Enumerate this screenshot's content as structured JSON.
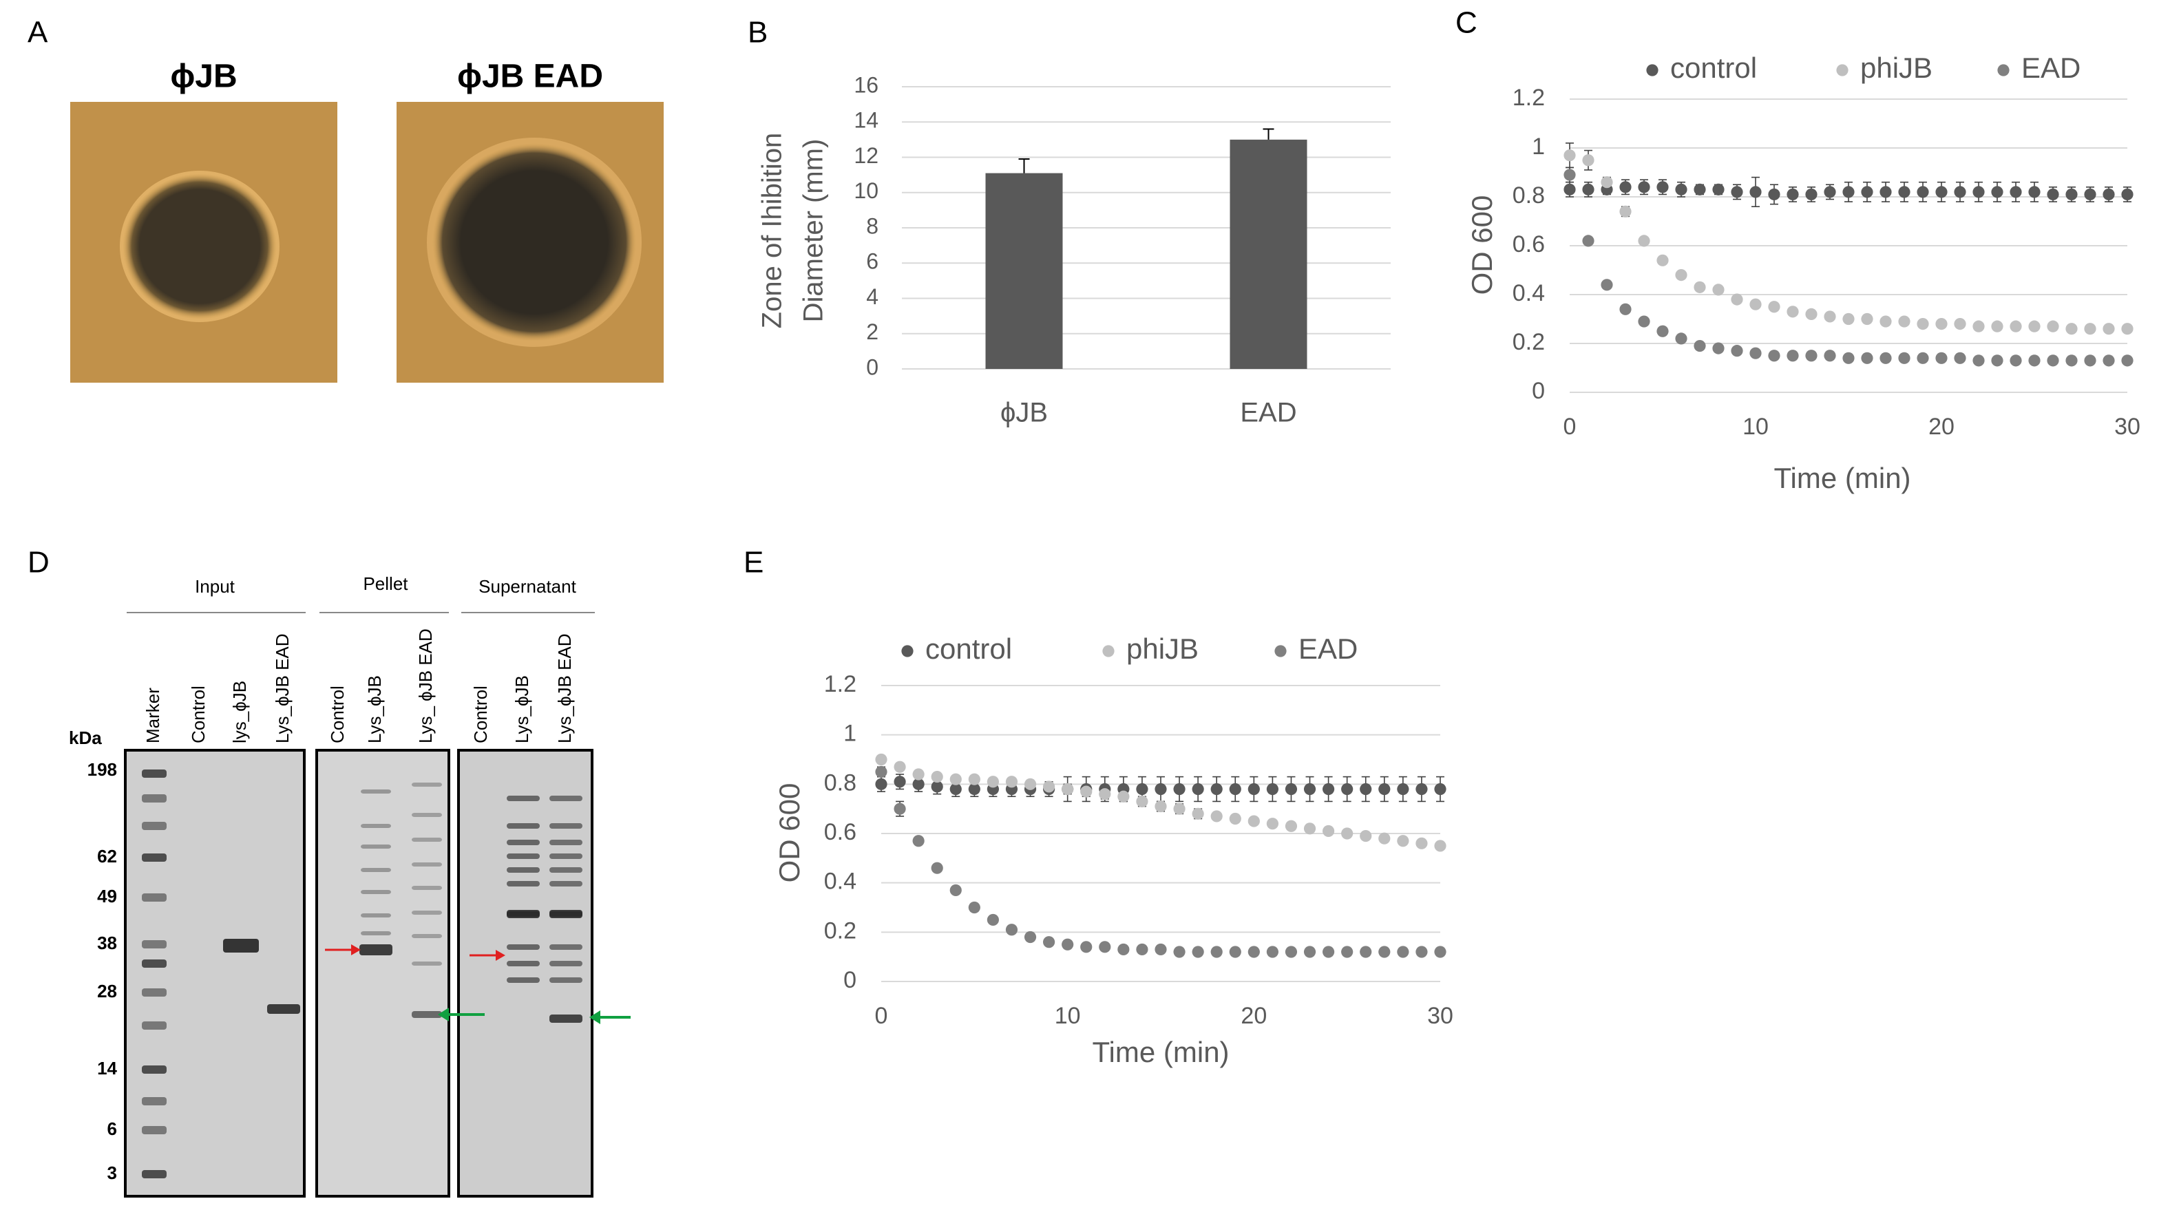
{
  "panel_labels": [
    "A",
    "B",
    "C",
    "D",
    "E"
  ],
  "panel_a": {
    "titles": [
      "ϕJB",
      "ϕJB EAD"
    ]
  },
  "panel_d": {
    "groups": [
      {
        "name": "Input",
        "lanes": [
          "Marker",
          "Control",
          "lys_ϕJB",
          "Lys_ϕJB EAD"
        ]
      },
      {
        "name": "Pellet",
        "lanes": [
          "Control",
          "Lys_ϕJB",
          "Lys_ ϕJB EAD"
        ]
      },
      {
        "name": "Supernatant",
        "lanes": [
          "Control",
          "Lys_ϕJB",
          "Lys_ϕJB EAD"
        ]
      }
    ],
    "unit": "kDa",
    "markers": [
      198,
      62,
      49,
      38,
      28,
      14,
      6,
      3
    ]
  },
  "chart_data": [
    {
      "type": "bar",
      "categories": [
        "ϕJB",
        "EAD"
      ],
      "values": [
        11.1,
        13.0
      ],
      "errors": [
        0.8,
        0.6
      ],
      "color": "#595959",
      "y_label": [
        "Zone of Ihibition",
        "Diameter  (mm)"
      ],
      "ylim": [
        0,
        16
      ],
      "yticks": [
        0,
        2,
        4,
        6,
        8,
        10,
        12,
        14,
        16
      ],
      "grid": true
    },
    {
      "type": "scatter",
      "x": [
        0,
        1,
        2,
        3,
        4,
        5,
        6,
        7,
        8,
        9,
        10,
        11,
        12,
        13,
        14,
        15,
        16,
        17,
        18,
        19,
        20,
        21,
        22,
        23,
        24,
        25,
        26,
        27,
        28,
        29,
        30
      ],
      "x_label": "Time (min)",
      "y_label": "OD 600",
      "xlim": [
        0,
        30
      ],
      "xticks": [
        0,
        10,
        20,
        30
      ],
      "ylim": [
        0,
        1.2
      ],
      "yticks": [
        0,
        0.2,
        0.4,
        0.6,
        0.8,
        1,
        1.2
      ],
      "grid": true,
      "legend": "top",
      "series": [
        {
          "name": "control",
          "color": "#595959",
          "values": [
            0.83,
            0.83,
            0.83,
            0.84,
            0.84,
            0.84,
            0.83,
            0.83,
            0.83,
            0.82,
            0.82,
            0.81,
            0.81,
            0.81,
            0.82,
            0.82,
            0.82,
            0.82,
            0.82,
            0.82,
            0.82,
            0.82,
            0.82,
            0.82,
            0.82,
            0.82,
            0.81,
            0.81,
            0.81,
            0.81,
            0.81
          ],
          "errors": [
            0.03,
            0.03,
            0.02,
            0.03,
            0.03,
            0.03,
            0.03,
            0.02,
            0.02,
            0.03,
            0.06,
            0.04,
            0.03,
            0.03,
            0.03,
            0.04,
            0.04,
            0.04,
            0.04,
            0.04,
            0.04,
            0.04,
            0.04,
            0.04,
            0.04,
            0.04,
            0.03,
            0.03,
            0.03,
            0.03,
            0.03
          ]
        },
        {
          "name": "phiJB",
          "color": "#bfbfbf",
          "values": [
            0.97,
            0.95,
            0.86,
            0.74,
            0.62,
            0.54,
            0.48,
            0.43,
            0.42,
            0.38,
            0.36,
            0.35,
            0.33,
            0.32,
            0.31,
            0.3,
            0.3,
            0.29,
            0.29,
            0.28,
            0.28,
            0.28,
            0.27,
            0.27,
            0.27,
            0.27,
            0.27,
            0.26,
            0.26,
            0.26,
            0.26
          ],
          "errors": [
            0.05,
            0.04,
            0.02,
            0.02,
            0.01,
            0.01,
            0.01,
            0.01,
            0.01,
            0.01,
            0.01,
            0.01,
            0.01,
            0.01,
            0.01,
            0.01,
            0.01,
            0.01,
            0.01,
            0.01,
            0.01,
            0.01,
            0.01,
            0.01,
            0.01,
            0.01,
            0.01,
            0.01,
            0.01,
            0.01,
            0.01
          ]
        },
        {
          "name": "EAD",
          "color": "#808080",
          "values": [
            0.89,
            0.62,
            0.44,
            0.34,
            0.29,
            0.25,
            0.22,
            0.19,
            0.18,
            0.17,
            0.16,
            0.15,
            0.15,
            0.15,
            0.15,
            0.14,
            0.14,
            0.14,
            0.14,
            0.14,
            0.14,
            0.14,
            0.13,
            0.13,
            0.13,
            0.13,
            0.13,
            0.13,
            0.13,
            0.13,
            0.13
          ],
          "errors": [
            0.03,
            0.01,
            0.01,
            0.01,
            0.01,
            0.01,
            0.01,
            0.01,
            0.01,
            0.01,
            0.01,
            0.01,
            0.01,
            0.01,
            0.01,
            0.01,
            0.01,
            0.01,
            0.01,
            0.01,
            0.01,
            0.01,
            0.01,
            0.01,
            0.01,
            0.01,
            0.01,
            0.01,
            0.01,
            0.01,
            0.01
          ]
        }
      ]
    },
    {
      "type": "scatter",
      "x": [
        0,
        1,
        2,
        3,
        4,
        5,
        6,
        7,
        8,
        9,
        10,
        11,
        12,
        13,
        14,
        15,
        16,
        17,
        18,
        19,
        20,
        21,
        22,
        23,
        24,
        25,
        26,
        27,
        28,
        29,
        30
      ],
      "x_label": "Time (min)",
      "y_label": "OD 600",
      "xlim": [
        0,
        30
      ],
      "xticks": [
        0,
        10,
        20,
        30
      ],
      "ylim": [
        0,
        1.2
      ],
      "yticks": [
        0,
        0.2,
        0.4,
        0.6,
        0.8,
        1,
        1.2
      ],
      "grid": true,
      "legend": "top",
      "series": [
        {
          "name": "control",
          "color": "#595959",
          "values": [
            0.8,
            0.81,
            0.8,
            0.79,
            0.78,
            0.78,
            0.78,
            0.78,
            0.78,
            0.78,
            0.78,
            0.78,
            0.78,
            0.78,
            0.78,
            0.78,
            0.78,
            0.78,
            0.78,
            0.78,
            0.78,
            0.78,
            0.78,
            0.78,
            0.78,
            0.78,
            0.78,
            0.78,
            0.78,
            0.78,
            0.78
          ],
          "errors": [
            0.03,
            0.03,
            0.03,
            0.03,
            0.03,
            0.03,
            0.03,
            0.03,
            0.03,
            0.03,
            0.05,
            0.05,
            0.05,
            0.05,
            0.05,
            0.05,
            0.05,
            0.05,
            0.05,
            0.05,
            0.05,
            0.05,
            0.05,
            0.05,
            0.05,
            0.05,
            0.05,
            0.05,
            0.05,
            0.05,
            0.05
          ]
        },
        {
          "name": "phiJB",
          "color": "#bfbfbf",
          "values": [
            0.9,
            0.87,
            0.84,
            0.83,
            0.82,
            0.82,
            0.81,
            0.81,
            0.8,
            0.79,
            0.78,
            0.77,
            0.76,
            0.75,
            0.73,
            0.71,
            0.7,
            0.68,
            0.67,
            0.66,
            0.65,
            0.64,
            0.63,
            0.62,
            0.61,
            0.6,
            0.59,
            0.58,
            0.57,
            0.56,
            0.55
          ],
          "errors": [
            0.01,
            0.01,
            0.01,
            0.01,
            0.01,
            0.01,
            0.01,
            0.01,
            0.01,
            0.01,
            0.02,
            0.02,
            0.02,
            0.02,
            0.02,
            0.02,
            0.02,
            0.02,
            0.01,
            0.01,
            0.01,
            0.01,
            0.01,
            0.01,
            0.01,
            0.01,
            0.01,
            0.01,
            0.01,
            0.01,
            0.01
          ]
        },
        {
          "name": "EAD",
          "color": "#808080",
          "values": [
            0.85,
            0.7,
            0.57,
            0.46,
            0.37,
            0.3,
            0.25,
            0.21,
            0.18,
            0.16,
            0.15,
            0.14,
            0.14,
            0.13,
            0.13,
            0.13,
            0.12,
            0.12,
            0.12,
            0.12,
            0.12,
            0.12,
            0.12,
            0.12,
            0.12,
            0.12,
            0.12,
            0.12,
            0.12,
            0.12,
            0.12
          ],
          "errors": [
            0.02,
            0.03,
            0.01,
            0.01,
            0.01,
            0.01,
            0.01,
            0.01,
            0.01,
            0.01,
            0.01,
            0.01,
            0.01,
            0.01,
            0.01,
            0.01,
            0.01,
            0.01,
            0.01,
            0.01,
            0.01,
            0.01,
            0.01,
            0.01,
            0.01,
            0.01,
            0.01,
            0.01,
            0.01,
            0.01,
            0.01
          ]
        }
      ]
    }
  ]
}
